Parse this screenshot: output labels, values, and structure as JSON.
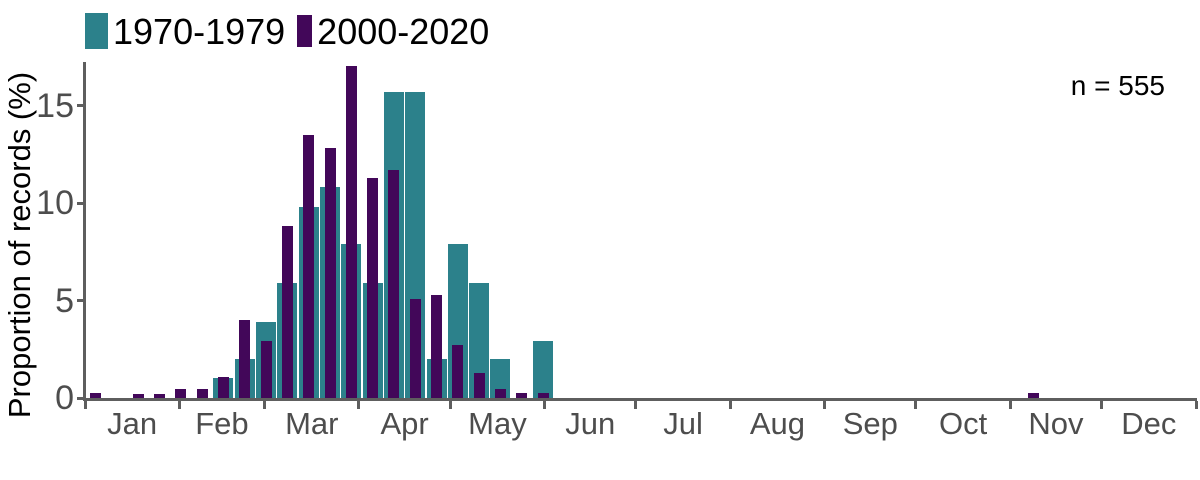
{
  "chart_data": {
    "type": "bar",
    "title": "",
    "ylabel": "Proportion of records (%)",
    "xlabel": "",
    "annotation": "n = 555",
    "grid": false,
    "legend_position": "top-left",
    "ylim": [
      0,
      17.4
    ],
    "yticks": [
      0,
      5,
      10,
      15
    ],
    "months": [
      "Jan",
      "Feb",
      "Mar",
      "Apr",
      "May",
      "Jun",
      "Jul",
      "Aug",
      "Sep",
      "Oct",
      "Nov",
      "Dec"
    ],
    "month_tick_days": [
      0,
      31,
      59,
      90,
      120,
      151,
      181,
      212,
      243,
      273,
      304,
      334,
      365
    ],
    "x_units": "day of year (weekly bars, centers at mid-week)",
    "series": [
      {
        "name": "1970-1979",
        "color": "#2C818B",
        "bar_style": "wide",
        "points": [
          [
            45.5,
            1.0
          ],
          [
            52.5,
            2.0
          ],
          [
            59.5,
            3.9
          ],
          [
            66.5,
            5.9
          ],
          [
            73.5,
            9.8
          ],
          [
            80.5,
            10.8
          ],
          [
            87.5,
            7.9
          ],
          [
            94.5,
            5.9
          ],
          [
            101.5,
            15.7
          ],
          [
            108.5,
            15.7
          ],
          [
            115.5,
            2.0
          ],
          [
            122.5,
            7.9
          ],
          [
            129.5,
            5.9
          ],
          [
            136.5,
            2.0
          ],
          [
            150.5,
            2.9
          ]
        ]
      },
      {
        "name": "2000-2020",
        "color": "#420759",
        "bar_style": "narrow",
        "points": [
          [
            3.5,
            0.25
          ],
          [
            17.5,
            0.2
          ],
          [
            24.5,
            0.2
          ],
          [
            31.5,
            0.45
          ],
          [
            38.5,
            0.45
          ],
          [
            45.5,
            1.1
          ],
          [
            52.5,
            4.0
          ],
          [
            59.5,
            2.9
          ],
          [
            66.5,
            8.8
          ],
          [
            73.5,
            13.5
          ],
          [
            80.5,
            12.8
          ],
          [
            87.5,
            17.0
          ],
          [
            94.5,
            11.3
          ],
          [
            101.5,
            11.7
          ],
          [
            108.5,
            5.1
          ],
          [
            115.5,
            5.3
          ],
          [
            122.5,
            2.7
          ],
          [
            129.5,
            1.3
          ],
          [
            136.5,
            0.45
          ],
          [
            143.5,
            0.25
          ],
          [
            150.5,
            0.25
          ],
          [
            311.5,
            0.25
          ]
        ]
      }
    ]
  }
}
